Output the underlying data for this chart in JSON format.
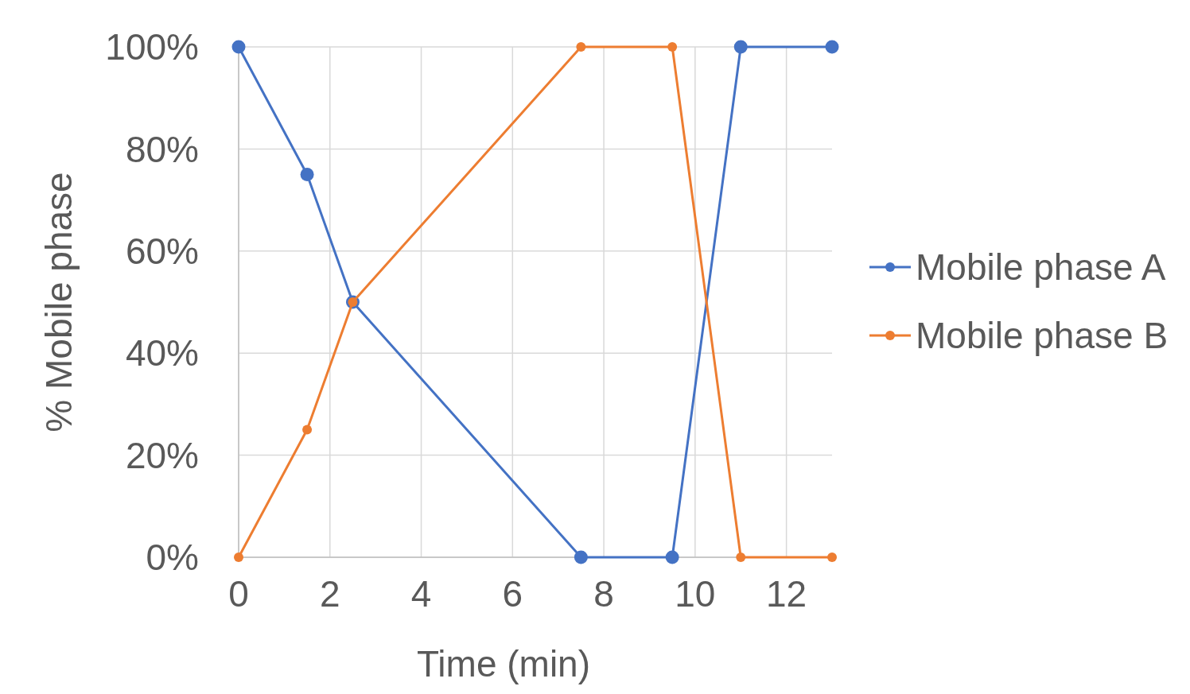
{
  "chart_data": {
    "type": "line",
    "xlabel": "Time (min)",
    "ylabel": "% Mobile phase",
    "x": [
      0,
      1.5,
      2.5,
      7.5,
      9.5,
      11,
      13
    ],
    "series": [
      {
        "name": "Mobile phase A",
        "color": "#4472c4",
        "values": [
          100,
          75,
          50,
          0,
          0,
          100,
          100
        ]
      },
      {
        "name": "Mobile phase B",
        "color": "#ed7d31",
        "values": [
          0,
          25,
          50,
          100,
          100,
          0,
          0
        ]
      }
    ],
    "xlim": [
      0,
      13
    ],
    "xticks": [
      0,
      2,
      4,
      6,
      8,
      10,
      12
    ],
    "ylim": [
      0,
      100
    ],
    "yticks": [
      {
        "value": 0,
        "label": "0%"
      },
      {
        "value": 20,
        "label": "20%"
      },
      {
        "value": 40,
        "label": "40%"
      },
      {
        "value": 60,
        "label": "60%"
      },
      {
        "value": 80,
        "label": "80%"
      },
      {
        "value": 100,
        "label": "100%"
      }
    ],
    "grid": true,
    "legend": "right",
    "marker": "circle",
    "line_style": "solid"
  }
}
